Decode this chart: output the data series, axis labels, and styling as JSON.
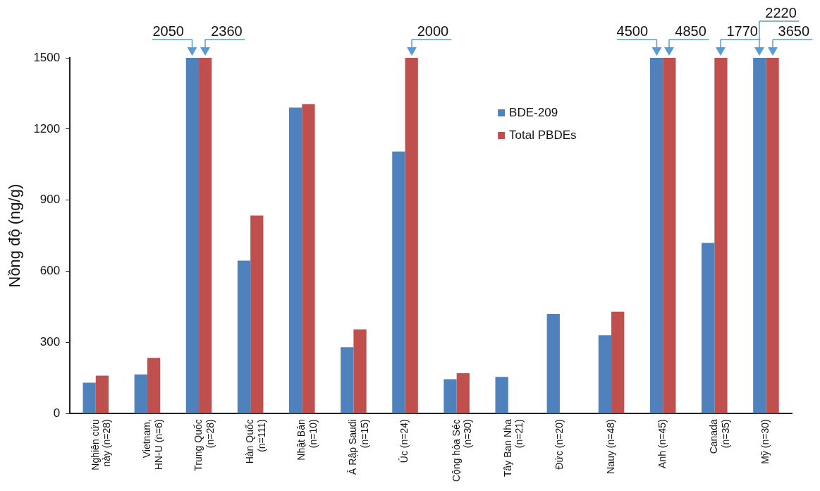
{
  "chart_data": {
    "type": "bar",
    "ylabel": "Nồng độ (ng/g)",
    "categories": [
      "Nghiên cứu này  (n=28)",
      "Vietnam, HN-U  (n=6)",
      "Trung Quốc (n=28)",
      "Hàn Quốc (n=111)",
      "Nhật Bản (n=10)",
      "Ả Rập Saudi (n=15)",
      "Úc (n=24)",
      "Cộng hòa Séc (n=30)",
      "Tây Ban Nha (n=21)",
      "Đức (n=20)",
      "Nauy (n=48)",
      "Anh (n=45)",
      "Canada (n=35)",
      "Mỹ (n=30)"
    ],
    "series": [
      {
        "name": "BDE-209",
        "color": "#4f81bd",
        "values": [
          130,
          165,
          1500,
          645,
          1290,
          280,
          1105,
          145,
          155,
          420,
          330,
          1500,
          720,
          1500
        ]
      },
      {
        "name": "Total PBDEs",
        "color": "#c0504d",
        "values": [
          160,
          235,
          1500,
          835,
          1305,
          355,
          1500,
          170,
          null,
          null,
          430,
          1500,
          1500,
          1500
        ]
      }
    ],
    "ylim": [
      0,
      1500
    ],
    "yticks": [
      0,
      300,
      600,
      900,
      1200,
      1500
    ],
    "grid": false,
    "legend": "top",
    "annotations": [
      {
        "text": "2050",
        "x": "Trung Quốc (n=28)",
        "y": 1500
      },
      {
        "text": "2360",
        "x": "Trung Quốc (n=28)",
        "y": 1500
      },
      {
        "text": "2000",
        "x": "Úc (n=24)",
        "y": 1500
      },
      {
        "text": "4500",
        "x": "Anh (n=45)",
        "y": 1500
      },
      {
        "text": "4850",
        "x": "Anh (n=45)",
        "y": 1500
      },
      {
        "text": "1770",
        "x": "Canada (n=35)",
        "y": 1500
      },
      {
        "text": "2220",
        "x": "Mỹ (n=30)",
        "y": 1500
      },
      {
        "text": "3650",
        "x": "Mỹ (n=30)",
        "y": 1500
      }
    ]
  }
}
